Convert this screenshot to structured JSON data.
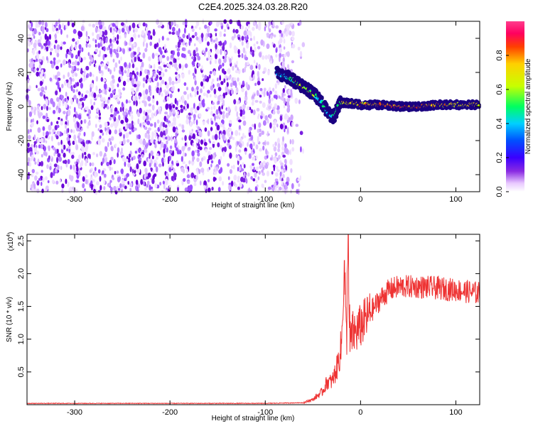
{
  "title": "C2E4.2025.324.03.28.R20",
  "chart_data": [
    {
      "type": "heatmap",
      "xlabel": "Height of straight line (km)",
      "ylabel": "Frequency (Hz)",
      "xlim": [
        -350,
        125
      ],
      "ylim": [
        -50,
        50
      ],
      "x_ticks": [
        -300,
        -200,
        -100,
        0,
        100
      ],
      "y_ticks": [
        -40,
        -20,
        0,
        20,
        40
      ],
      "colorbar": {
        "label": "Normalized spectral amplitude",
        "range": [
          0,
          1
        ],
        "ticks": [
          0.0,
          0.2,
          0.4,
          0.6,
          0.8
        ],
        "colormap": [
          "#ffffff",
          "#e8c8ff",
          "#8a2be2",
          "#3a00ff",
          "#0050ff",
          "#00d0ff",
          "#00ff60",
          "#c8ff00",
          "#ffd000",
          "#ff4000",
          "#ff0060",
          "#ff3c8c"
        ]
      },
      "features": {
        "noise_region_x": [
          -350,
          -70
        ],
        "trace": [
          {
            "x": -88,
            "y": 20,
            "amp": 0.3
          },
          {
            "x": -80,
            "y": 18,
            "amp": 0.35
          },
          {
            "x": -72,
            "y": 16,
            "amp": 0.4
          },
          {
            "x": -64,
            "y": 13,
            "amp": 0.5
          },
          {
            "x": -56,
            "y": 10,
            "amp": 0.55
          },
          {
            "x": -48,
            "y": 7,
            "amp": 0.45
          },
          {
            "x": -40,
            "y": 2,
            "amp": 0.35
          },
          {
            "x": -34,
            "y": -4,
            "amp": 0.3
          },
          {
            "x": -28,
            "y": -6,
            "amp": 0.35
          },
          {
            "x": -22,
            "y": 2,
            "amp": 0.5
          },
          {
            "x": -12,
            "y": 2,
            "amp": 0.6
          },
          {
            "x": 0,
            "y": 1,
            "amp": 0.7
          },
          {
            "x": 20,
            "y": 1,
            "amp": 0.75
          },
          {
            "x": 40,
            "y": 0,
            "amp": 0.8
          },
          {
            "x": 60,
            "y": 0,
            "amp": 0.8
          },
          {
            "x": 80,
            "y": 1,
            "amp": 0.7
          },
          {
            "x": 100,
            "y": 1,
            "amp": 0.65
          },
          {
            "x": 125,
            "y": 1,
            "amp": 0.6
          }
        ]
      }
    },
    {
      "type": "line",
      "xlabel": "Height of straight line (km)",
      "ylabel": "SNR (10 * v/v)",
      "yscale_label": "(x10",
      "yscale_exp": "4",
      "xlim": [
        -350,
        125
      ],
      "ylim": [
        0,
        2.6
      ],
      "x_ticks": [
        -300,
        -200,
        -100,
        0,
        100
      ],
      "y_ticks": [
        0.5,
        1.0,
        1.5,
        2.0,
        2.5
      ],
      "y_tick_labels": [
        "0.5",
        "1.0",
        "1.5",
        "2.0",
        "2.5"
      ],
      "color": "#ee3333",
      "series": [
        {
          "x": [
            -350,
            -300,
            -200,
            -100,
            -60,
            -50,
            -40,
            -35,
            -30,
            -25,
            -20,
            -17,
            -15,
            -13,
            -12,
            -10,
            -8,
            -5,
            0,
            10,
            20,
            30,
            40,
            60,
            80,
            100,
            125
          ],
          "y": [
            0.02,
            0.02,
            0.02,
            0.02,
            0.03,
            0.08,
            0.2,
            0.35,
            0.35,
            0.55,
            0.9,
            2.2,
            0.8,
            2.65,
            1.0,
            1.0,
            1.1,
            1.1,
            1.2,
            1.4,
            1.6,
            1.75,
            1.8,
            1.8,
            1.78,
            1.75,
            1.7
          ]
        }
      ]
    }
  ]
}
